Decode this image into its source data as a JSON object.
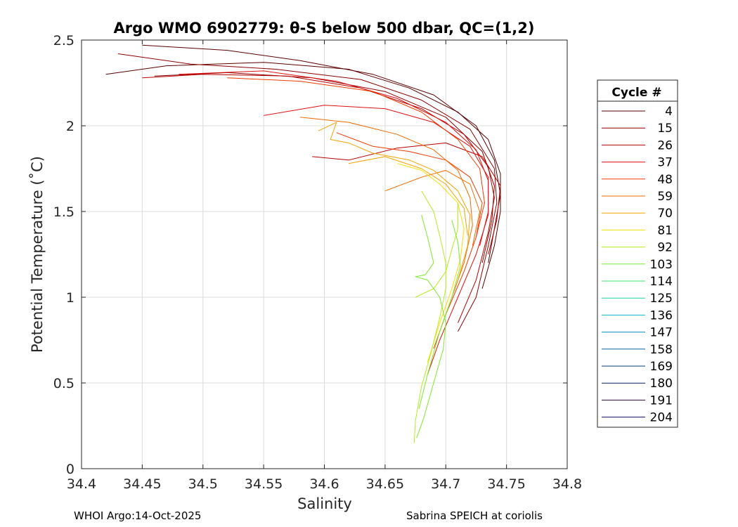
{
  "chart_data": {
    "type": "line",
    "title": "Argo WMO 6902779: θ-S below 500 dbar,  QC=(1,2)",
    "xlabel": "Salinity",
    "ylabel": "Potential Temperature (˚C)",
    "xlim": [
      34.4,
      34.8
    ],
    "ylim": [
      0,
      2.5
    ],
    "xticks": [
      34.4,
      34.45,
      34.5,
      34.55,
      34.6,
      34.65,
      34.7,
      34.75,
      34.8
    ],
    "xtick_labels": [
      "34.4",
      "34.45",
      "34.5",
      "34.55",
      "34.6",
      "34.65",
      "34.7",
      "34.75",
      "34.8"
    ],
    "yticks": [
      0,
      0.5,
      1,
      1.5,
      2,
      2.5
    ],
    "ytick_labels": [
      "0",
      "0.5",
      "1",
      "1.5",
      "2",
      "2.5"
    ],
    "grid": true,
    "legend": {
      "title": "Cycle #",
      "placement": "right",
      "entries": [
        {
          "label": "4",
          "color": "#5a0000"
        },
        {
          "label": "15",
          "color": "#8c0000"
        },
        {
          "label": "26",
          "color": "#b80000"
        },
        {
          "label": "37",
          "color": "#e01010"
        },
        {
          "label": "48",
          "color": "#f03a00"
        },
        {
          "label": "59",
          "color": "#f06a00"
        },
        {
          "label": "70",
          "color": "#f4a300"
        },
        {
          "label": "81",
          "color": "#f4e000"
        },
        {
          "label": "92",
          "color": "#b6ec1a"
        },
        {
          "label": "103",
          "color": "#7cea2c"
        },
        {
          "label": "114",
          "color": "#44e06a"
        },
        {
          "label": "125",
          "color": "#1cd0a6"
        },
        {
          "label": "136",
          "color": "#10b4cc"
        },
        {
          "label": "147",
          "color": "#0a8cbc"
        },
        {
          "label": "158",
          "color": "#06609c"
        },
        {
          "label": "169",
          "color": "#043c78"
        },
        {
          "label": "180",
          "color": "#03245a"
        },
        {
          "label": "191",
          "color": "#2a0a3a"
        },
        {
          "label": "204",
          "color": "#0a0a6a"
        }
      ]
    },
    "series": [
      {
        "color": "#5a0000",
        "values": [
          [
            34.42,
            2.3
          ],
          [
            34.47,
            2.35
          ],
          [
            34.55,
            2.37
          ],
          [
            34.62,
            2.33
          ],
          [
            34.67,
            2.22
          ],
          [
            34.71,
            2.08
          ],
          [
            34.735,
            1.92
          ],
          [
            34.745,
            1.72
          ],
          [
            34.745,
            1.5
          ],
          [
            34.74,
            1.3
          ],
          [
            34.73,
            1.05
          ]
        ]
      },
      {
        "color": "#5a0000",
        "values": [
          [
            34.45,
            2.47
          ],
          [
            34.52,
            2.44
          ],
          [
            34.58,
            2.38
          ],
          [
            34.64,
            2.3
          ],
          [
            34.69,
            2.18
          ],
          [
            34.725,
            2.0
          ],
          [
            34.74,
            1.8
          ],
          [
            34.745,
            1.6
          ],
          [
            34.74,
            1.4
          ],
          [
            34.735,
            1.2
          ]
        ]
      },
      {
        "color": "#8c0000",
        "values": [
          [
            34.43,
            2.42
          ],
          [
            34.49,
            2.36
          ],
          [
            34.56,
            2.33
          ],
          [
            34.63,
            2.27
          ],
          [
            34.68,
            2.15
          ],
          [
            34.72,
            1.98
          ],
          [
            34.74,
            1.75
          ],
          [
            34.742,
            1.55
          ],
          [
            34.735,
            1.3
          ],
          [
            34.725,
            1.0
          ],
          [
            34.71,
            0.8
          ]
        ]
      },
      {
        "color": "#8c0000",
        "values": [
          [
            34.46,
            2.29
          ],
          [
            34.52,
            2.31
          ],
          [
            34.59,
            2.28
          ],
          [
            34.65,
            2.2
          ],
          [
            34.7,
            2.05
          ],
          [
            34.73,
            1.85
          ],
          [
            34.74,
            1.65
          ],
          [
            34.738,
            1.45
          ],
          [
            34.73,
            1.2
          ]
        ]
      },
      {
        "color": "#b80000",
        "values": [
          [
            34.45,
            2.28
          ],
          [
            34.5,
            2.3
          ],
          [
            34.57,
            2.29
          ],
          [
            34.63,
            2.22
          ],
          [
            34.68,
            2.1
          ],
          [
            34.715,
            1.95
          ],
          [
            34.735,
            1.76
          ],
          [
            34.74,
            1.58
          ],
          [
            34.735,
            1.38
          ],
          [
            34.725,
            1.1
          ],
          [
            34.71,
            0.85
          ]
        ]
      },
      {
        "color": "#b80000",
        "values": [
          [
            34.59,
            1.82
          ],
          [
            34.62,
            1.8
          ],
          [
            34.66,
            1.87
          ],
          [
            34.7,
            1.9
          ],
          [
            34.73,
            1.82
          ],
          [
            34.745,
            1.65
          ],
          [
            34.742,
            1.45
          ],
          [
            34.735,
            1.25
          ]
        ]
      },
      {
        "color": "#e01010",
        "values": [
          [
            34.48,
            2.3
          ],
          [
            34.55,
            2.32
          ],
          [
            34.61,
            2.26
          ],
          [
            34.66,
            2.16
          ],
          [
            34.7,
            2.02
          ],
          [
            34.725,
            1.86
          ],
          [
            34.735,
            1.68
          ],
          [
            34.735,
            1.48
          ],
          [
            34.725,
            1.25
          ],
          [
            34.71,
            1.0
          ],
          [
            34.695,
            0.75
          ],
          [
            34.685,
            0.55
          ]
        ]
      },
      {
        "color": "#e01010",
        "values": [
          [
            34.55,
            2.06
          ],
          [
            34.6,
            2.12
          ],
          [
            34.65,
            2.1
          ],
          [
            34.69,
            2.02
          ],
          [
            34.72,
            1.88
          ],
          [
            34.735,
            1.7
          ],
          [
            34.735,
            1.5
          ],
          [
            34.728,
            1.3
          ]
        ]
      },
      {
        "color": "#f03a00",
        "values": [
          [
            34.52,
            2.28
          ],
          [
            34.58,
            2.26
          ],
          [
            34.64,
            2.2
          ],
          [
            34.68,
            2.08
          ],
          [
            34.71,
            1.92
          ],
          [
            34.728,
            1.75
          ],
          [
            34.732,
            1.55
          ],
          [
            34.725,
            1.35
          ],
          [
            34.715,
            1.15
          ],
          [
            34.7,
            0.9
          ],
          [
            34.69,
            0.7
          ]
        ]
      },
      {
        "color": "#f03a00",
        "values": [
          [
            34.61,
            1.96
          ],
          [
            34.64,
            1.88
          ],
          [
            34.67,
            1.85
          ],
          [
            34.7,
            1.8
          ],
          [
            34.72,
            1.7
          ],
          [
            34.73,
            1.55
          ],
          [
            34.725,
            1.35
          ]
        ]
      },
      {
        "color": "#f06a00",
        "values": [
          [
            34.58,
            2.05
          ],
          [
            34.62,
            2.02
          ],
          [
            34.66,
            1.95
          ],
          [
            34.69,
            1.86
          ],
          [
            34.71,
            1.74
          ],
          [
            34.72,
            1.58
          ],
          [
            34.722,
            1.42
          ],
          [
            34.715,
            1.2
          ],
          [
            34.705,
            1.0
          ],
          [
            34.695,
            0.8
          ]
        ]
      },
      {
        "color": "#f06a00",
        "values": [
          [
            34.65,
            1.62
          ],
          [
            34.68,
            1.7
          ],
          [
            34.7,
            1.74
          ],
          [
            34.72,
            1.66
          ],
          [
            34.728,
            1.5
          ],
          [
            34.722,
            1.3
          ]
        ]
      },
      {
        "color": "#f4a300",
        "values": [
          [
            34.595,
            1.97
          ],
          [
            34.61,
            2.02
          ],
          [
            34.605,
            1.92
          ],
          [
            34.62,
            1.9
          ],
          [
            34.64,
            1.84
          ],
          [
            34.67,
            1.8
          ],
          [
            34.69,
            1.74
          ],
          [
            34.71,
            1.62
          ],
          [
            34.72,
            1.48
          ],
          [
            34.718,
            1.3
          ],
          [
            34.71,
            1.1
          ]
        ]
      },
      {
        "color": "#f4a300",
        "values": [
          [
            34.62,
            1.78
          ],
          [
            34.65,
            1.82
          ],
          [
            34.68,
            1.75
          ],
          [
            34.7,
            1.66
          ],
          [
            34.715,
            1.52
          ],
          [
            34.718,
            1.36
          ]
        ]
      },
      {
        "color": "#f4e000",
        "values": [
          [
            34.66,
            1.78
          ],
          [
            34.68,
            1.74
          ],
          [
            34.695,
            1.66
          ],
          [
            34.71,
            1.55
          ],
          [
            34.715,
            1.4
          ],
          [
            34.712,
            1.22
          ],
          [
            34.705,
            1.05
          ],
          [
            34.695,
            0.85
          ],
          [
            34.685,
            0.62
          ]
        ]
      },
      {
        "color": "#b6ec1a",
        "values": [
          [
            34.68,
            1.62
          ],
          [
            34.69,
            1.5
          ],
          [
            34.695,
            1.36
          ],
          [
            34.7,
            1.2
          ],
          [
            34.7,
            1.05
          ],
          [
            34.695,
            0.88
          ],
          [
            34.688,
            0.68
          ],
          [
            34.68,
            0.48
          ],
          [
            34.675,
            0.28
          ],
          [
            34.674,
            0.15
          ]
        ]
      },
      {
        "color": "#b6ec1a",
        "values": [
          [
            34.675,
            1.0
          ],
          [
            34.69,
            1.05
          ],
          [
            34.7,
            1.15
          ],
          [
            34.705,
            1.28
          ],
          [
            34.71,
            1.4
          ],
          [
            34.71,
            1.55
          ]
        ]
      },
      {
        "color": "#7cea2c",
        "values": [
          [
            34.68,
            1.48
          ],
          [
            34.685,
            1.35
          ],
          [
            34.69,
            1.2
          ],
          [
            34.683,
            1.13
          ],
          [
            34.675,
            1.12
          ],
          [
            34.685,
            1.1
          ],
          [
            34.695,
            1.0
          ],
          [
            34.7,
            0.85
          ],
          [
            34.698,
            0.7
          ],
          [
            34.69,
            0.5
          ],
          [
            34.682,
            0.3
          ],
          [
            34.676,
            0.18
          ]
        ]
      },
      {
        "color": "#7cea2c",
        "values": [
          [
            34.705,
            1.45
          ],
          [
            34.71,
            1.32
          ],
          [
            34.712,
            1.18
          ],
          [
            34.705,
            1.0
          ],
          [
            34.695,
            0.8
          ],
          [
            34.685,
            0.55
          ],
          [
            34.678,
            0.35
          ]
        ]
      }
    ]
  },
  "footer": {
    "left": "WHOI Argo:14-Oct-2025",
    "right": "Sabrina SPEICH at coriolis"
  }
}
